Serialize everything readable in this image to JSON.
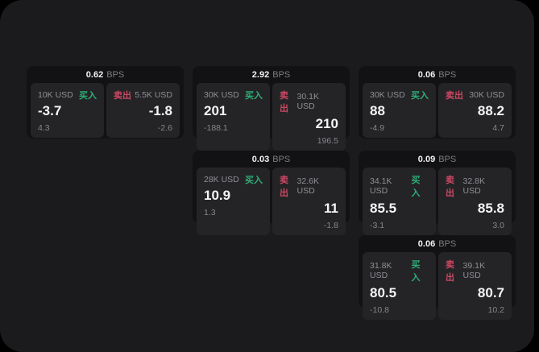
{
  "colors": {
    "buy": "#2fae77",
    "sell": "#cb4862",
    "panel_bg": "#1b1b1d",
    "card_bg": "#121214",
    "subpanel_bg": "#242427"
  },
  "labels": {
    "buy": "买入",
    "sell": "卖出",
    "bps_unit": "BPS"
  },
  "cards": [
    {
      "row": 1,
      "col": 1,
      "bps": "0.62",
      "bps_unit": "BPS",
      "buy": {
        "amount": "10K USD",
        "label": "买入",
        "price": "-3.7",
        "delta": "4.3"
      },
      "sell": {
        "amount": "5.5K USD",
        "label": "卖出",
        "price": "-1.8",
        "delta": "-2.6"
      }
    },
    {
      "row": 1,
      "col": 2,
      "bps": "2.92",
      "bps_unit": "BPS",
      "buy": {
        "amount": "30K USD",
        "label": "买入",
        "price": "201",
        "delta": "-188.1"
      },
      "sell": {
        "amount": "30.1K USD",
        "label": "卖出",
        "price": "210",
        "delta": "196.5"
      }
    },
    {
      "row": 1,
      "col": 3,
      "bps": "0.06",
      "bps_unit": "BPS",
      "buy": {
        "amount": "30K USD",
        "label": "买入",
        "price": "88",
        "delta": "-4.9"
      },
      "sell": {
        "amount": "30K USD",
        "label": "卖出",
        "price": "88.2",
        "delta": "4.7"
      }
    },
    {
      "row": 2,
      "col": 2,
      "bps": "0.03",
      "bps_unit": "BPS",
      "buy": {
        "amount": "28K USD",
        "label": "买入",
        "price": "10.9",
        "delta": "1.3"
      },
      "sell": {
        "amount": "32.6K USD",
        "label": "卖出",
        "price": "11",
        "delta": "-1.8"
      }
    },
    {
      "row": 2,
      "col": 3,
      "bps": "0.09",
      "bps_unit": "BPS",
      "buy": {
        "amount": "34.1K USD",
        "label": "买入",
        "price": "85.5",
        "delta": "-3.1"
      },
      "sell": {
        "amount": "32.8K USD",
        "label": "卖出",
        "price": "85.8",
        "delta": "3.0"
      }
    },
    {
      "row": 3,
      "col": 3,
      "bps": "0.06",
      "bps_unit": "BPS",
      "buy": {
        "amount": "31.8K USD",
        "label": "买入",
        "price": "80.5",
        "delta": "-10.8"
      },
      "sell": {
        "amount": "39.1K USD",
        "label": "卖出",
        "price": "80.7",
        "delta": "10.2"
      }
    }
  ]
}
